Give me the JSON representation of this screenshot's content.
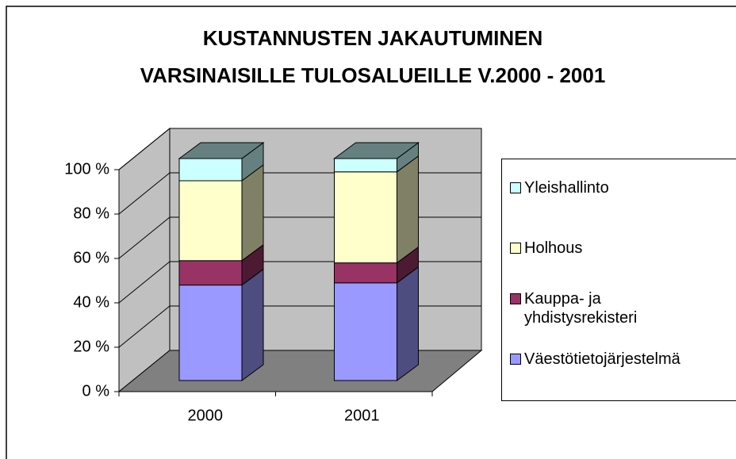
{
  "chart_data": {
    "type": "bar3d_stacked",
    "title": [
      "KUSTANNUSTEN JAKAUTUMINEN",
      "VARSINAISILLE TULOSALUEILLE V.2000 - 2001"
    ],
    "categories": [
      "2000",
      "2001"
    ],
    "series": [
      {
        "name": "Väestötietojärjestelmä",
        "color": "#9999ff",
        "side": "#4d4d80",
        "values": [
          43,
          44
        ]
      },
      {
        "name": "Kauppa- ja yhdistysrekisteri",
        "color": "#993366",
        "side": "#4d1a33",
        "values": [
          11,
          9
        ]
      },
      {
        "name": "Holhous",
        "color": "#ffffcc",
        "side": "#808066",
        "values": [
          36,
          41
        ]
      },
      {
        "name": "Yleishallinto",
        "color": "#ccffff",
        "side": "#668080",
        "values": [
          10,
          6
        ]
      }
    ],
    "ylim": [
      0,
      100
    ],
    "yticks": [
      {
        "value": 0,
        "label": "0 %"
      },
      {
        "value": 20,
        "label": "20 %"
      },
      {
        "value": 40,
        "label": "40 %"
      },
      {
        "value": 60,
        "label": "60 %"
      },
      {
        "value": 80,
        "label": "80 %"
      },
      {
        "value": 100,
        "label": "100 %"
      }
    ],
    "grid": true
  }
}
